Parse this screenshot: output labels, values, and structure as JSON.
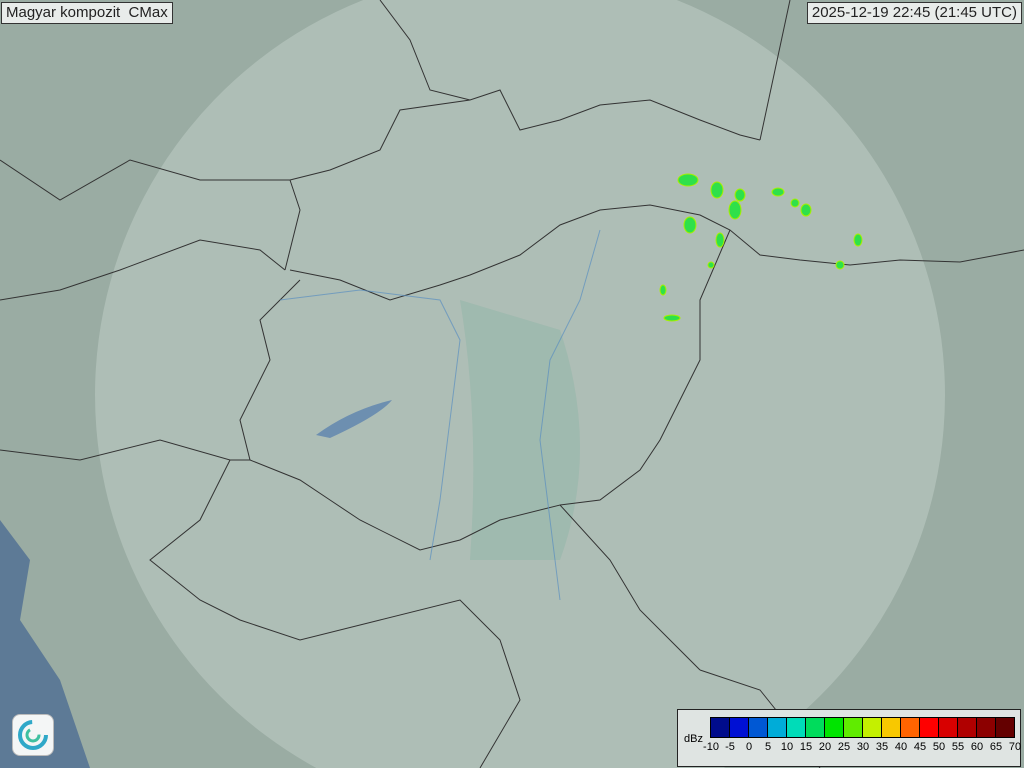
{
  "title": "Magyar kompozit  CMax",
  "timestamp": "2025-12-19 22:45 (21:45 UTC)",
  "legend": {
    "unit": "dBz",
    "ticks": [
      "-10",
      "-5",
      "0",
      "5",
      "10",
      "15",
      "20",
      "25",
      "30",
      "35",
      "40",
      "45",
      "50",
      "55",
      "60",
      "65",
      "70"
    ],
    "colors": [
      "#000c8c",
      "#0010d4",
      "#0058d4",
      "#00acd8",
      "#00dcb8",
      "#00dc5c",
      "#00e400",
      "#60ec00",
      "#c4f000",
      "#f8c800",
      "#ff6400",
      "#ff0000",
      "#d80000",
      "#b00000",
      "#8c0000",
      "#640000"
    ]
  },
  "logo": "swirl-logo-icon"
}
